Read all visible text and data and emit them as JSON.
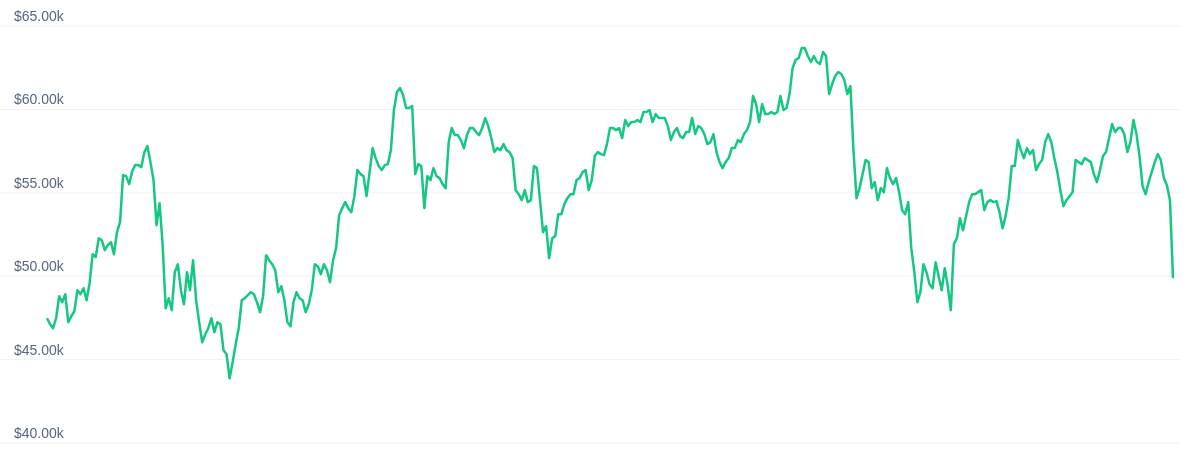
{
  "chart_data": {
    "type": "line",
    "relative": false,
    "grid": "y",
    "marker": "none",
    "line_style": "solid",
    "tick_labels": "y",
    "ylim": [
      40,
      65
    ],
    "yticks": [
      {
        "value": 40,
        "label": "$40.00k"
      },
      {
        "value": 45,
        "label": "$45.00k"
      },
      {
        "value": 50,
        "label": "$50.00k"
      },
      {
        "value": 55,
        "label": "$55.00k"
      },
      {
        "value": 60,
        "label": "$60.00k"
      },
      {
        "value": 65,
        "label": "$65.00k"
      }
    ],
    "series": [
      {
        "color": "#16c784",
        "values": [
          47.48,
          47.12,
          46.88,
          47.48,
          48.8,
          48.44,
          48.92,
          47.24,
          47.6,
          47.9,
          49.16,
          48.92,
          49.28,
          48.56,
          49.58,
          51.32,
          51.14,
          52.28,
          52.16,
          51.56,
          51.86,
          52.04,
          51.32,
          52.64,
          53.24,
          56.06,
          56.0,
          55.52,
          56.3,
          56.66,
          56.66,
          56.54,
          57.44,
          57.8,
          56.84,
          55.76,
          53.06,
          54.38,
          51.86,
          48.08,
          48.68,
          47.96,
          50.24,
          50.72,
          49.16,
          48.32,
          50.24,
          49.16,
          50.96,
          48.56,
          47.24,
          46.04,
          46.52,
          46.88,
          47.48,
          46.64,
          47.24,
          47.12,
          45.56,
          45.32,
          43.88,
          44.84,
          45.92,
          46.88,
          48.56,
          48.68,
          48.86,
          49.04,
          48.92,
          48.44,
          47.84,
          48.8,
          51.26,
          50.96,
          50.72,
          50.36,
          49.04,
          49.4,
          48.56,
          47.24,
          47.0,
          48.44,
          49.04,
          48.68,
          48.56,
          47.84,
          48.32,
          49.16,
          50.72,
          50.6,
          50.12,
          50.72,
          50.36,
          49.64,
          50.96,
          51.68,
          53.66,
          54.08,
          54.44,
          54.08,
          53.84,
          54.8,
          56.36,
          56.12,
          56.0,
          54.8,
          56.24,
          57.68,
          57.08,
          56.6,
          56.36,
          56.66,
          56.72,
          57.56,
          59.96,
          61.04,
          61.28,
          60.86,
          60.08,
          60.08,
          60.2,
          56.12,
          56.72,
          56.6,
          54.08,
          56.0,
          55.76,
          56.48,
          56.0,
          55.88,
          55.52,
          55.28,
          58.04,
          58.88,
          58.46,
          58.46,
          58.16,
          57.68,
          58.46,
          58.88,
          58.88,
          58.64,
          58.46,
          58.88,
          59.48,
          59.0,
          58.28,
          57.44,
          57.68,
          57.56,
          57.92,
          57.56,
          57.44,
          57.08,
          55.16,
          54.92,
          54.56,
          55.16,
          54.44,
          54.56,
          56.6,
          56.48,
          54.56,
          52.64,
          53.0,
          51.08,
          52.28,
          52.4,
          53.72,
          53.72,
          54.32,
          54.68,
          54.92,
          54.92,
          55.76,
          55.88,
          56.24,
          56.36,
          55.16,
          55.76,
          57.2,
          57.44,
          57.32,
          57.26,
          57.92,
          58.88,
          58.88,
          58.76,
          58.88,
          58.28,
          59.36,
          59.0,
          59.24,
          59.24,
          59.36,
          59.24,
          59.84,
          59.84,
          59.96,
          59.24,
          59.72,
          59.48,
          59.48,
          59.48,
          59.0,
          58.16,
          58.64,
          58.88,
          58.4,
          58.28,
          58.64,
          58.64,
          59.48,
          58.52,
          59.0,
          58.88,
          58.52,
          57.92,
          58.04,
          58.52,
          57.44,
          56.84,
          56.48,
          56.84,
          57.08,
          57.68,
          57.68,
          58.16,
          58.04,
          58.52,
          58.76,
          59.24,
          60.8,
          60.32,
          59.24,
          60.32,
          59.72,
          59.72,
          59.84,
          59.72,
          59.84,
          60.8,
          59.96,
          60.08,
          60.92,
          62.48,
          62.96,
          63.08,
          63.68,
          63.68,
          63.2,
          62.84,
          63.2,
          62.84,
          62.72,
          63.44,
          63.2,
          60.92,
          61.52,
          62.0,
          62.24,
          62.12,
          61.76,
          60.92,
          61.4,
          57.56,
          54.68,
          55.28,
          56.12,
          56.96,
          56.84,
          55.28,
          55.64,
          54.56,
          55.28,
          55.04,
          56.48,
          55.88,
          55.52,
          55.88,
          55.04,
          53.96,
          53.72,
          54.44,
          51.68,
          50.24,
          48.44,
          49.04,
          50.72,
          50.24,
          49.52,
          49.28,
          50.84,
          50.0,
          49.16,
          50.48,
          49.4,
          47.96,
          51.92,
          52.28,
          53.48,
          52.76,
          53.6,
          54.44,
          54.92,
          54.92,
          55.04,
          55.16,
          53.96,
          54.44,
          54.56,
          54.44,
          54.5,
          53.84,
          52.88,
          53.6,
          54.68,
          56.6,
          56.6,
          58.16,
          57.56,
          57.08,
          57.68,
          57.32,
          57.56,
          56.36,
          56.72,
          56.96,
          58.04,
          58.52,
          58.04,
          57.08,
          56.24,
          55.16,
          54.2,
          54.56,
          54.8,
          55.04,
          56.96,
          56.84,
          56.72,
          57.08,
          56.96,
          56.84,
          56.12,
          55.64,
          56.36,
          57.2,
          57.44,
          58.28,
          59.12,
          58.64,
          58.88,
          58.88,
          58.52,
          57.44,
          58.04,
          59.36,
          58.52,
          57.2,
          55.4,
          54.92,
          55.64,
          56.24,
          56.84,
          57.32,
          56.96,
          55.88,
          55.46,
          54.56,
          49.88
        ]
      }
    ]
  }
}
